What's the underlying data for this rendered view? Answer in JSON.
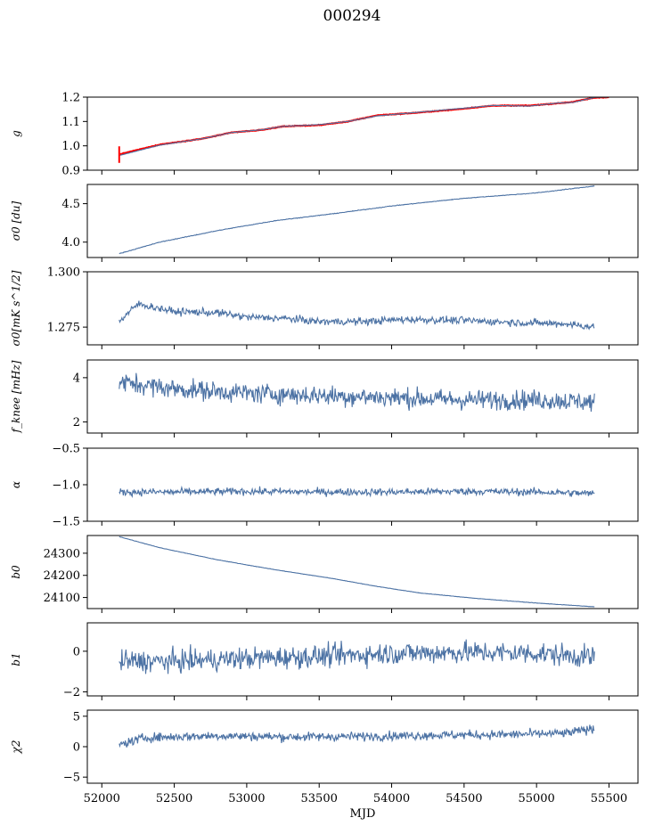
{
  "title": "000294",
  "xlabel": "MJD",
  "xlim": [
    51900,
    55700
  ],
  "xticks": [
    "52000",
    "52500",
    "53000",
    "53500",
    "54000",
    "54500",
    "55000",
    "55500"
  ],
  "colors": {
    "series": "#4c72a4",
    "highlight": "#ff0000"
  },
  "chart_data": [
    {
      "type": "line",
      "ylabel": "g",
      "ylim": [
        0.9,
        1.2
      ],
      "yticks": [
        "0.9",
        "1.0",
        "1.1",
        "1.2"
      ],
      "series": [
        {
          "values": [
            [
              52120,
              0.965
            ],
            [
              52400,
              1.005
            ],
            [
              52700,
              1.03
            ],
            [
              52900,
              1.055
            ],
            [
              53100,
              1.065
            ],
            [
              53250,
              1.08
            ],
            [
              53500,
              1.085
            ],
            [
              53700,
              1.1
            ],
            [
              53900,
              1.125
            ],
            [
              54150,
              1.135
            ],
            [
              54450,
              1.15
            ],
            [
              54700,
              1.165
            ],
            [
              54950,
              1.165
            ],
            [
              55150,
              1.175
            ],
            [
              55250,
              1.18
            ],
            [
              55400,
              1.198
            ],
            [
              55500,
              1.2
            ]
          ]
        },
        {
          "values": [
            [
              52120,
              0.96
            ],
            [
              52400,
              1.003
            ],
            [
              52700,
              1.03
            ],
            [
              52900,
              1.055
            ],
            [
              53100,
              1.066
            ],
            [
              53250,
              1.08
            ],
            [
              53500,
              1.087
            ],
            [
              53700,
              1.1
            ],
            [
              53900,
              1.123
            ],
            [
              54150,
              1.136
            ],
            [
              54450,
              1.152
            ],
            [
              54700,
              1.166
            ],
            [
              54950,
              1.163
            ],
            [
              55150,
              1.176
            ],
            [
              55250,
              1.178
            ],
            [
              55400,
              1.199
            ],
            [
              55500,
              1.2
            ]
          ]
        }
      ]
    },
    {
      "type": "line",
      "ylabel": "σ0 [du]",
      "ylim": [
        3.8,
        4.75
      ],
      "yticks": [
        "4.0",
        "4.5"
      ],
      "series": [
        {
          "values": [
            [
              52120,
              3.85
            ],
            [
              52400,
              4.0
            ],
            [
              52800,
              4.15
            ],
            [
              53200,
              4.28
            ],
            [
              53600,
              4.37
            ],
            [
              54000,
              4.47
            ],
            [
              54500,
              4.57
            ],
            [
              55000,
              4.64
            ],
            [
              55400,
              4.73
            ]
          ]
        }
      ]
    },
    {
      "type": "line",
      "ylabel": "σ0[mK s^1/2]",
      "ylim": [
        1.267,
        1.3
      ],
      "yticks": [
        "1.275",
        "1.300"
      ],
      "series": [
        {
          "values": [
            [
              52120,
              1.2775
            ],
            [
              52250,
              1.2855
            ],
            [
              52500,
              1.282
            ],
            [
              52800,
              1.2815
            ],
            [
              53000,
              1.2795
            ],
            [
              53250,
              1.279
            ],
            [
              53500,
              1.2775
            ],
            [
              53800,
              1.2775
            ],
            [
              54100,
              1.2785
            ],
            [
              54500,
              1.278
            ],
            [
              54900,
              1.277
            ],
            [
              55200,
              1.2765
            ],
            [
              55400,
              1.275
            ]
          ]
        }
      ]
    },
    {
      "type": "line",
      "ylabel": "f_knee [mHz]",
      "ylim": [
        1.5,
        4.8
      ],
      "yticks": [
        "2",
        "4"
      ],
      "series": [
        {
          "values": [
            [
              52120,
              3.8
            ],
            [
              52500,
              3.5
            ],
            [
              53000,
              3.3
            ],
            [
              53500,
              3.2
            ],
            [
              54000,
              3.1
            ],
            [
              54500,
              3.0
            ],
            [
              55000,
              3.0
            ],
            [
              55400,
              2.9
            ]
          ]
        }
      ]
    },
    {
      "type": "line",
      "ylabel": "α",
      "ylim": [
        -1.5,
        -0.5
      ],
      "yticks": [
        "−1.5",
        "−1.0",
        "−0.5"
      ],
      "series": [
        {
          "values": [
            [
              52120,
              -1.1
            ],
            [
              52500,
              -1.1
            ],
            [
              53000,
              -1.09
            ],
            [
              53500,
              -1.1
            ],
            [
              54000,
              -1.1
            ],
            [
              54500,
              -1.09
            ],
            [
              55000,
              -1.1
            ],
            [
              55400,
              -1.12
            ]
          ]
        }
      ]
    },
    {
      "type": "line",
      "ylabel": "b0",
      "ylim": [
        24050,
        24380
      ],
      "yticks": [
        "24100",
        "24200",
        "24300"
      ],
      "series": [
        {
          "values": [
            [
              52120,
              24375
            ],
            [
              52400,
              24325
            ],
            [
              52800,
              24270
            ],
            [
              53200,
              24225
            ],
            [
              53600,
              24185
            ],
            [
              53900,
              24150
            ],
            [
              54200,
              24120
            ],
            [
              54600,
              24095
            ],
            [
              55000,
              24075
            ],
            [
              55400,
              24058
            ]
          ]
        }
      ]
    },
    {
      "type": "line",
      "ylabel": "b1",
      "ylim": [
        -2.2,
        1.4
      ],
      "yticks": [
        "−2",
        "0"
      ],
      "series": [
        {
          "values": [
            [
              52120,
              -0.5
            ],
            [
              52500,
              -0.5
            ],
            [
              53000,
              -0.35
            ],
            [
              53500,
              -0.25
            ],
            [
              54000,
              -0.1
            ],
            [
              54500,
              -0.05
            ],
            [
              55000,
              -0.1
            ],
            [
              55400,
              -0.3
            ]
          ]
        }
      ]
    },
    {
      "type": "line",
      "ylabel": "χ2",
      "ylim": [
        -6,
        6
      ],
      "yticks": [
        "−5",
        "0",
        "5"
      ],
      "series": [
        {
          "values": [
            [
              52120,
              0.3
            ],
            [
              52300,
              1.5
            ],
            [
              52800,
              1.8
            ],
            [
              53300,
              1.6
            ],
            [
              53800,
              1.7
            ],
            [
              54300,
              1.9
            ],
            [
              54800,
              2.0
            ],
            [
              55200,
              2.2
            ],
            [
              55400,
              3.0
            ]
          ]
        }
      ]
    }
  ]
}
